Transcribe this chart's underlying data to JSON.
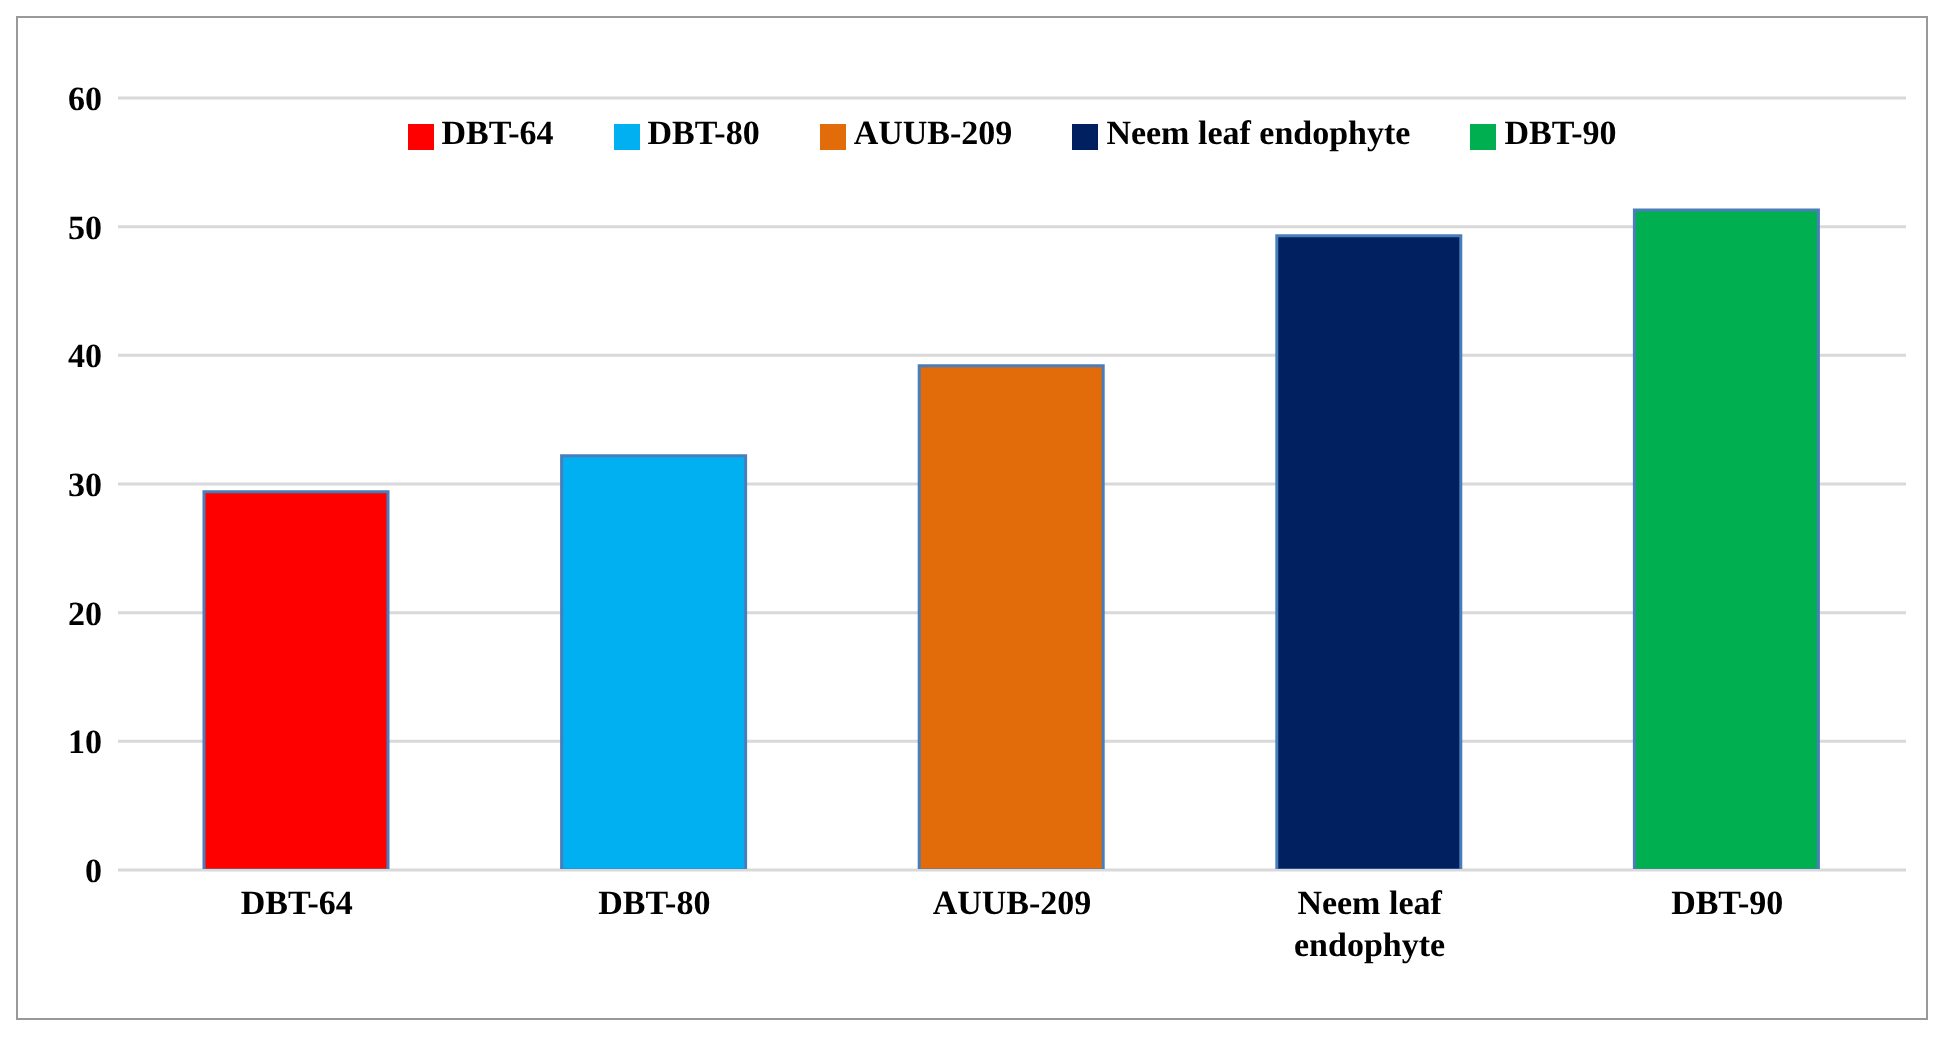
{
  "chart_data": {
    "type": "bar",
    "stacked": true,
    "categories": [
      "DBT-64",
      "DBT-80",
      "AUUB-209",
      "Neem leaf endophyte",
      "DBT-90"
    ],
    "series": [
      {
        "name": "DBT-64",
        "color": "#ff0000",
        "values": [
          29.4,
          null,
          null,
          null,
          null
        ]
      },
      {
        "name": "DBT-80",
        "color": "#00b0f0",
        "values": [
          null,
          32.2,
          null,
          null,
          null
        ]
      },
      {
        "name": "AUUB-209",
        "color": "#e26b0a",
        "values": [
          null,
          null,
          39.2,
          null,
          null
        ]
      },
      {
        "name": "Neem leaf endophyte",
        "color": "#002060",
        "values": [
          null,
          null,
          null,
          49.3,
          null
        ]
      },
      {
        "name": "DBT-90",
        "color": "#00b050",
        "values": [
          null,
          null,
          null,
          null,
          51.3
        ]
      }
    ],
    "ylim": [
      0,
      60
    ],
    "yticks": [
      0,
      10,
      20,
      30,
      40,
      50,
      60
    ],
    "grid": "y",
    "legend": "top"
  }
}
